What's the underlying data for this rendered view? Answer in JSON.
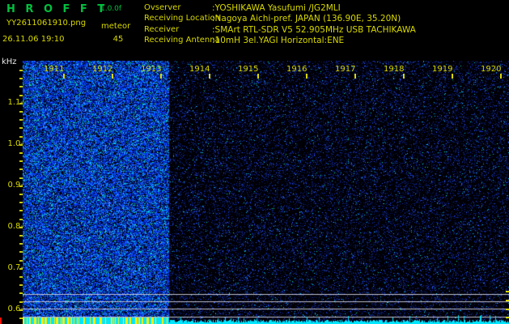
{
  "window": {
    "app_title": "H R O F F T",
    "version": "1.0.0f"
  },
  "header": {
    "filename": "YY2611061910.png",
    "datetime": "26.11.06 19:10",
    "counter_label": "meteor",
    "counter_value": "45",
    "info_rows": [
      {
        "label": "Ovserver",
        "value": ":YOSHIKAWA Yasufumi /JG2MLI"
      },
      {
        "label": "Receiving Location",
        "value": ":Nagoya Aichi-pref. JAPAN (136.90E, 35.20N)"
      },
      {
        "label": "Receiver",
        "value": ":SMArt RTL-SDR V5 52.905MHz USB TACHIKAWA"
      },
      {
        "label": "Receiving Antenna",
        "value": ":10mH 3el.YAGI Horizontal:ENE"
      }
    ]
  },
  "spectrogram": {
    "y_axis_unit": "kHz",
    "y_tick_labels": [
      "1.1-",
      "1.0-",
      "0.9-",
      "0.8-",
      "0.7-",
      "0.6-"
    ],
    "time_labels": [
      "1911",
      "1912",
      "1913",
      "1914",
      "1915",
      "1916",
      "1917",
      "1918",
      "1919",
      "1920"
    ],
    "colors": {
      "title_green": "#00c040",
      "text_yellow": "#d8d800",
      "axis_white": "#e8e8e8",
      "gridline_gray": "#d0d0e0",
      "strip_cyan": "#00e6ff",
      "strip_bar_yellow": "#ffee00",
      "marker_red": "#f01000",
      "noise_bright": [
        "#0433e6",
        "#0a50ff",
        "#021d96",
        "#05c6f2",
        "#09e48e",
        "#4b85ff"
      ],
      "noise_dark": [
        "#0a1c6a",
        "#142fb4",
        "#2b55ff",
        "#04c6f2",
        "#07e795"
      ]
    }
  }
}
